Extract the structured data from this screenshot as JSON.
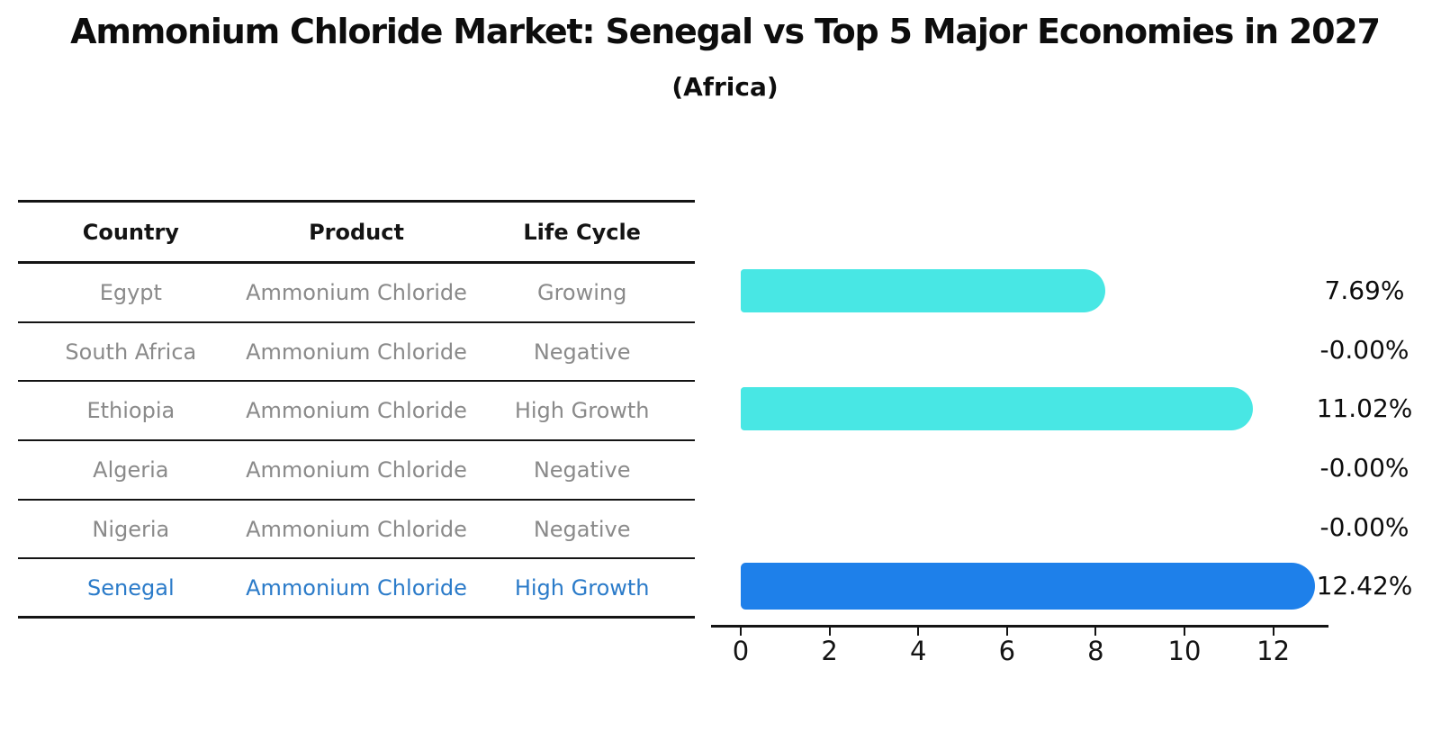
{
  "title": "Ammonium Chloride Market: Senegal vs Top 5 Major Economies in 2027",
  "subtitle": "(Africa)",
  "table": {
    "headers": [
      "Country",
      "Product",
      "Life Cycle"
    ],
    "rows": [
      {
        "country": "Egypt",
        "product": "Ammonium Chloride",
        "life_cycle": "Growing",
        "highlighted": false
      },
      {
        "country": "South Africa",
        "product": "Ammonium Chloride",
        "life_cycle": "Negative",
        "highlighted": false
      },
      {
        "country": "Ethiopia",
        "product": "Ammonium Chloride",
        "life_cycle": "High Growth",
        "highlighted": false
      },
      {
        "country": "Algeria",
        "product": "Ammonium Chloride",
        "life_cycle": "Negative",
        "highlighted": false
      },
      {
        "country": "Nigeria",
        "product": "Ammonium Chloride",
        "life_cycle": "Negative",
        "highlighted": false
      },
      {
        "country": "Senegal",
        "product": "Ammonium Chloride",
        "life_cycle": "High Growth",
        "highlighted": true
      }
    ]
  },
  "chart_data": {
    "type": "bar",
    "orientation": "horizontal",
    "title": "Ammonium Chloride Market: Senegal vs Top 5 Major Economies in 2027",
    "subtitle": "(Africa)",
    "categories": [
      "Egypt",
      "South Africa",
      "Ethiopia",
      "Algeria",
      "Nigeria",
      "Senegal"
    ],
    "values": [
      7.69,
      -0.0,
      11.02,
      -0.0,
      -0.0,
      12.42
    ],
    "value_labels": [
      "7.69%",
      "-0.00%",
      "11.02%",
      "-0.00%",
      "-0.00%",
      "12.42%"
    ],
    "x_ticks": [
      0,
      2,
      4,
      6,
      8,
      10,
      12
    ],
    "x_tick_labels": [
      "0",
      "2",
      "4",
      "6",
      "8",
      "10",
      "12"
    ],
    "xlim": [
      0,
      13.2
    ],
    "grid": false,
    "legend": "none",
    "highlight_index": 5,
    "highlight_style": "dotted-outline"
  },
  "colors": {
    "bar_default": "#48e7e4",
    "bar_highlight": "#1e80ea",
    "highlight_text": "#2b7bc9",
    "axis": "#141414",
    "muted_text": "#8a8a8a",
    "label_text": "#0d0d0d"
  }
}
